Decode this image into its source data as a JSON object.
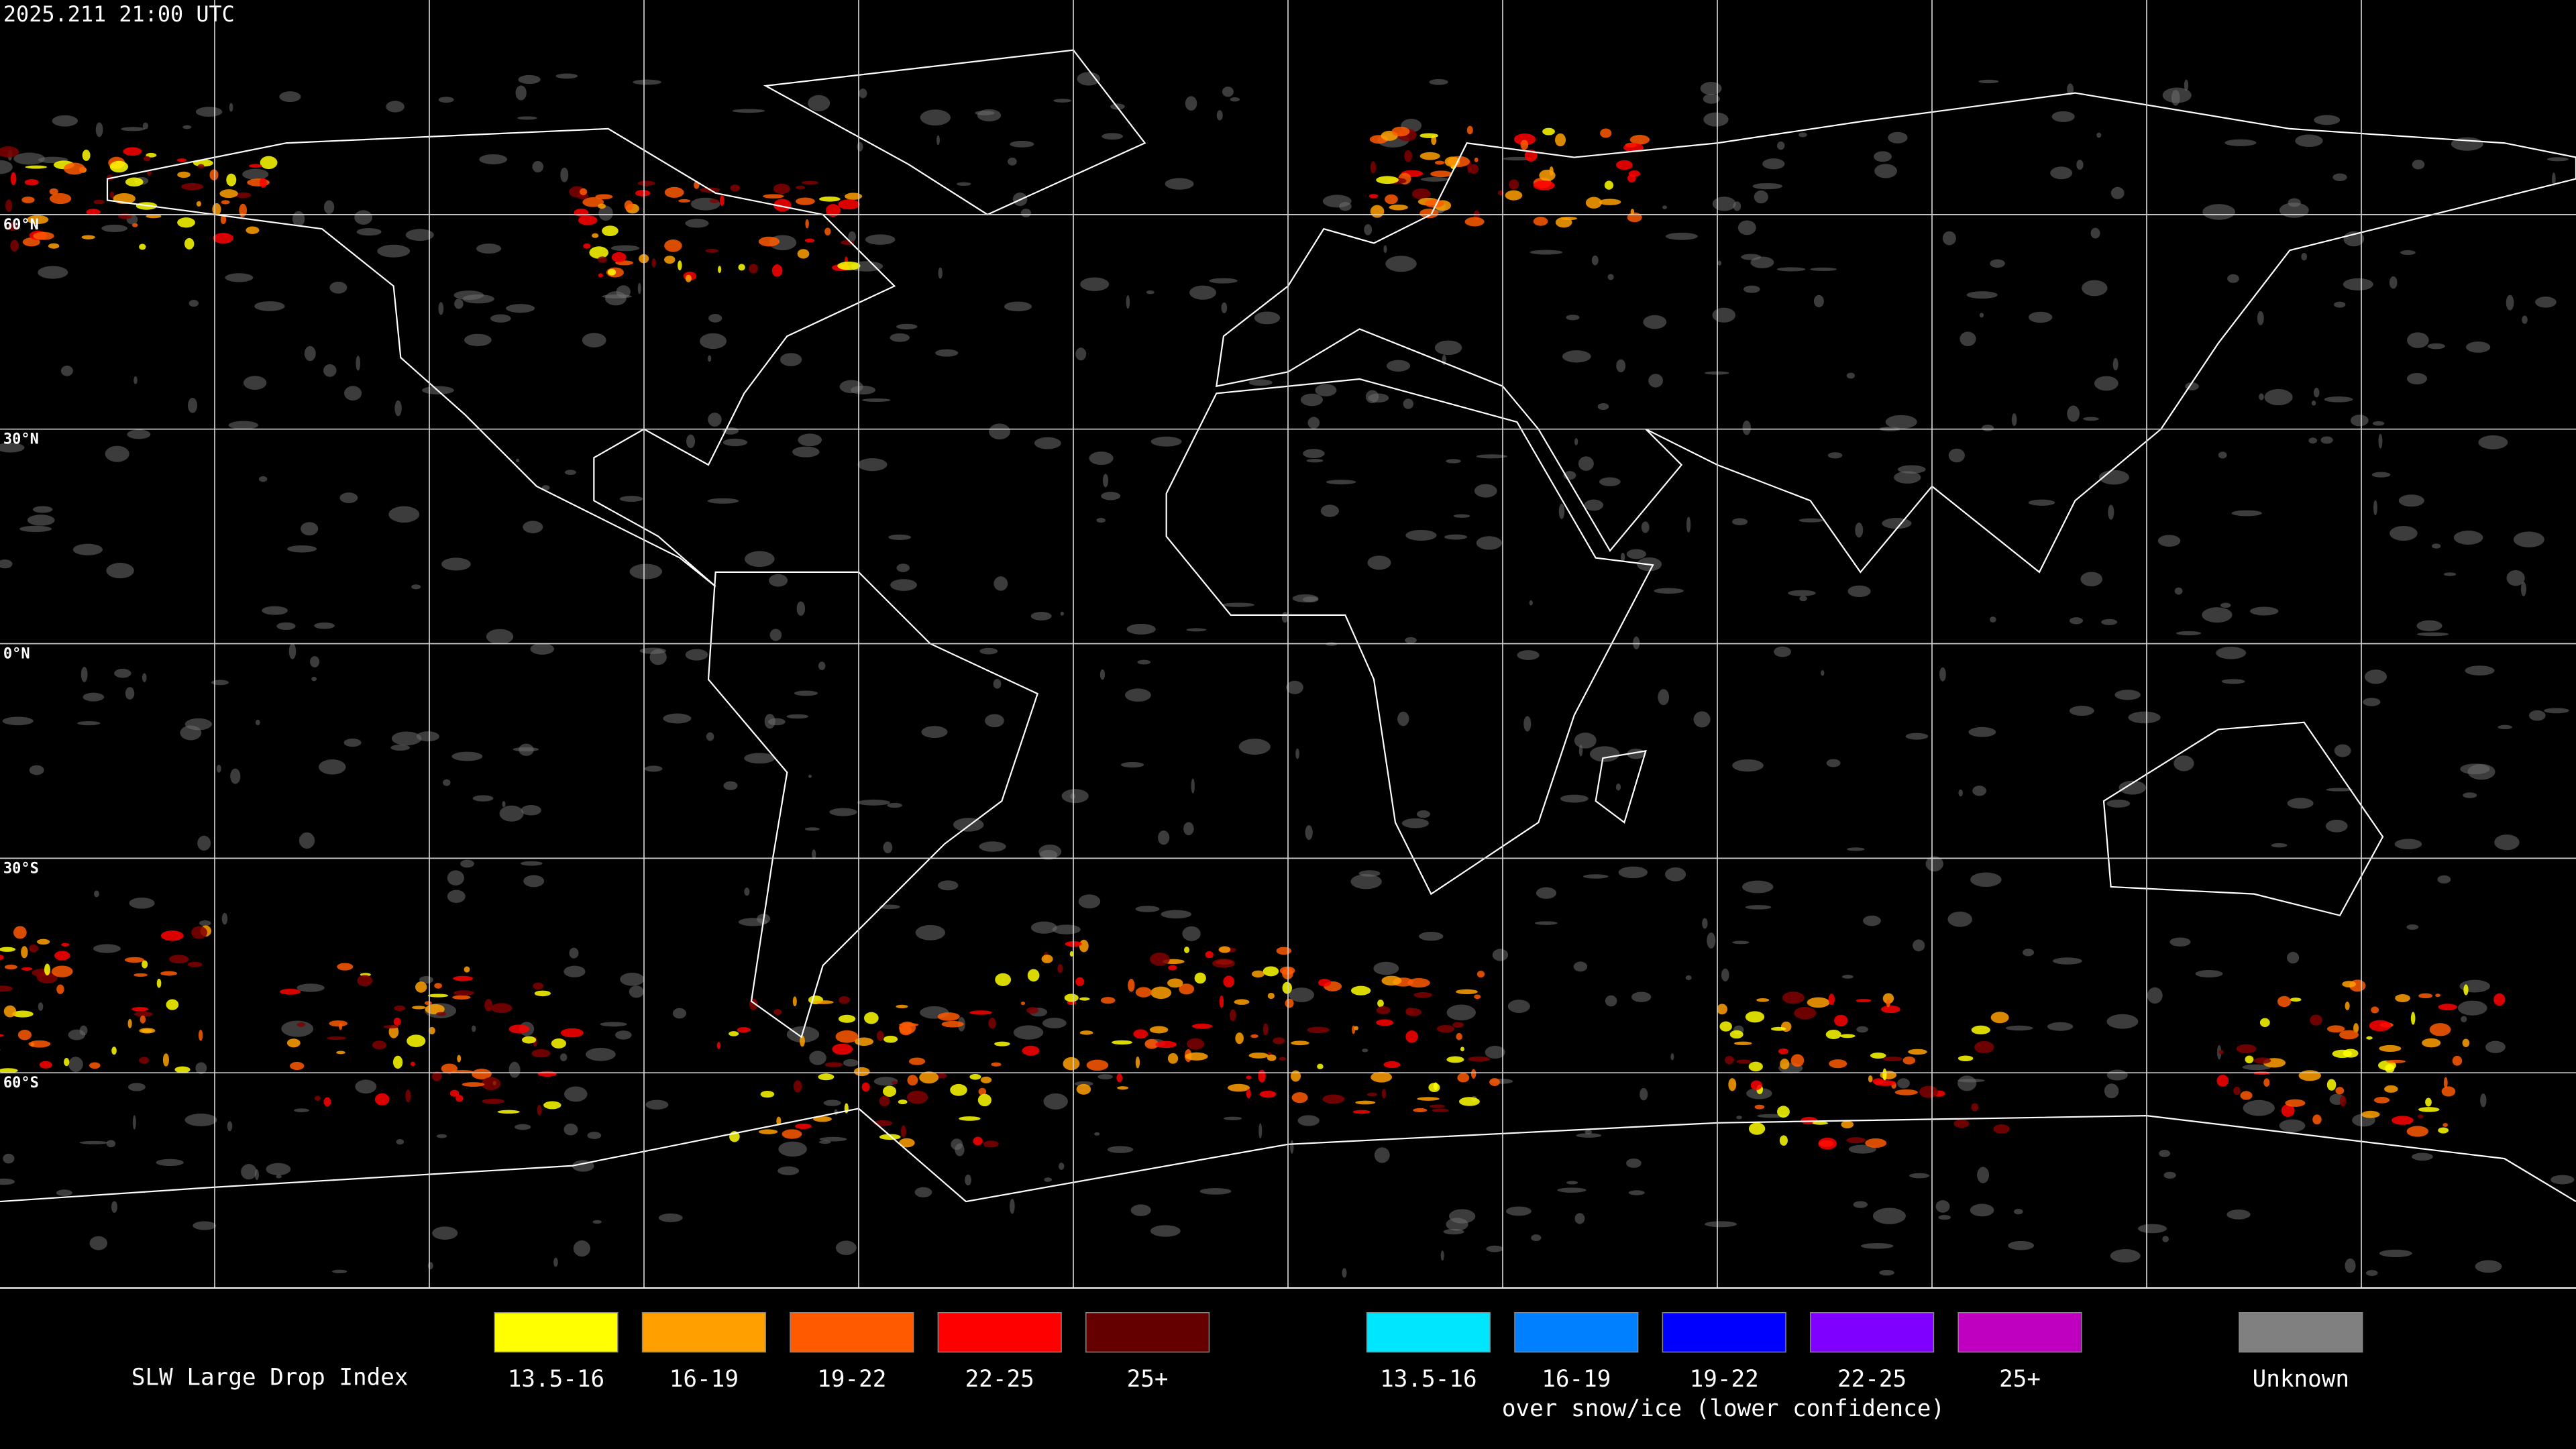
{
  "timestamp": "2025.211 21:00 UTC",
  "latitude_labels": [
    "60°N",
    "30°N",
    "0°N",
    "30°S",
    "60°S"
  ],
  "legend": {
    "title": "SLW Large Drop Index",
    "items": [
      {
        "label": "13.5-16",
        "color": "#ffff00"
      },
      {
        "label": "16-19",
        "color": "#ffa000"
      },
      {
        "label": "19-22",
        "color": "#ff5a00"
      },
      {
        "label": "22-25",
        "color": "#ff0000"
      },
      {
        "label": "25+",
        "color": "#640000"
      }
    ],
    "snow_items": [
      {
        "label": "13.5-16",
        "color": "#00e6ff"
      },
      {
        "label": "16-19",
        "color": "#0080ff"
      },
      {
        "label": "19-22",
        "color": "#0000ff"
      },
      {
        "label": "22-25",
        "color": "#8000ff"
      },
      {
        "label": "25+",
        "color": "#c000c0"
      }
    ],
    "snow_caption": "over snow/ice (lower confidence)",
    "unknown": {
      "label": "Unknown",
      "color": "#808080"
    }
  }
}
